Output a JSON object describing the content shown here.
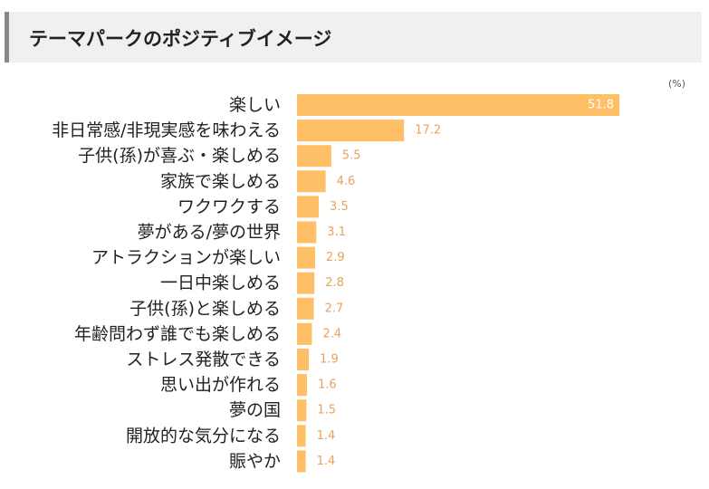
{
  "header": {
    "title": "テーマパークのポジティブイメージ"
  },
  "colors": {
    "bar": "#ffbf66",
    "value_outside": "#e8a25c",
    "value_inside": "#ffffff",
    "header_bg": "#f0f0f0",
    "header_border": "#888888"
  },
  "chart_data": {
    "type": "bar",
    "orientation": "horizontal",
    "unit": "(%)",
    "categories": [
      "楽しい",
      "非日常感/非現実感を味わえる",
      "子供(孫)が喜ぶ・楽しめる",
      "家族で楽しめる",
      "ワクワクする",
      "夢がある/夢の世界",
      "アトラクションが楽しい",
      "一日中楽しめる",
      "子供(孫)と楽しめる",
      "年齢問わず誰でも楽しめる",
      "ストレス発散できる",
      "思い出が作れる",
      "夢の国",
      "開放的な気分になる",
      "賑やか"
    ],
    "values": [
      51.8,
      17.2,
      5.5,
      4.6,
      3.5,
      3.1,
      2.9,
      2.8,
      2.7,
      2.4,
      1.9,
      1.6,
      1.5,
      1.4,
      1.4
    ],
    "value_labels": [
      "51.8",
      "17.2",
      "5.5",
      "4.6",
      "3.5",
      "3.1",
      "2.9",
      "2.8",
      "2.7",
      "2.4",
      "1.9",
      "1.6",
      "1.5",
      "1.4",
      "1.4"
    ],
    "grid": false,
    "legend": "none"
  }
}
